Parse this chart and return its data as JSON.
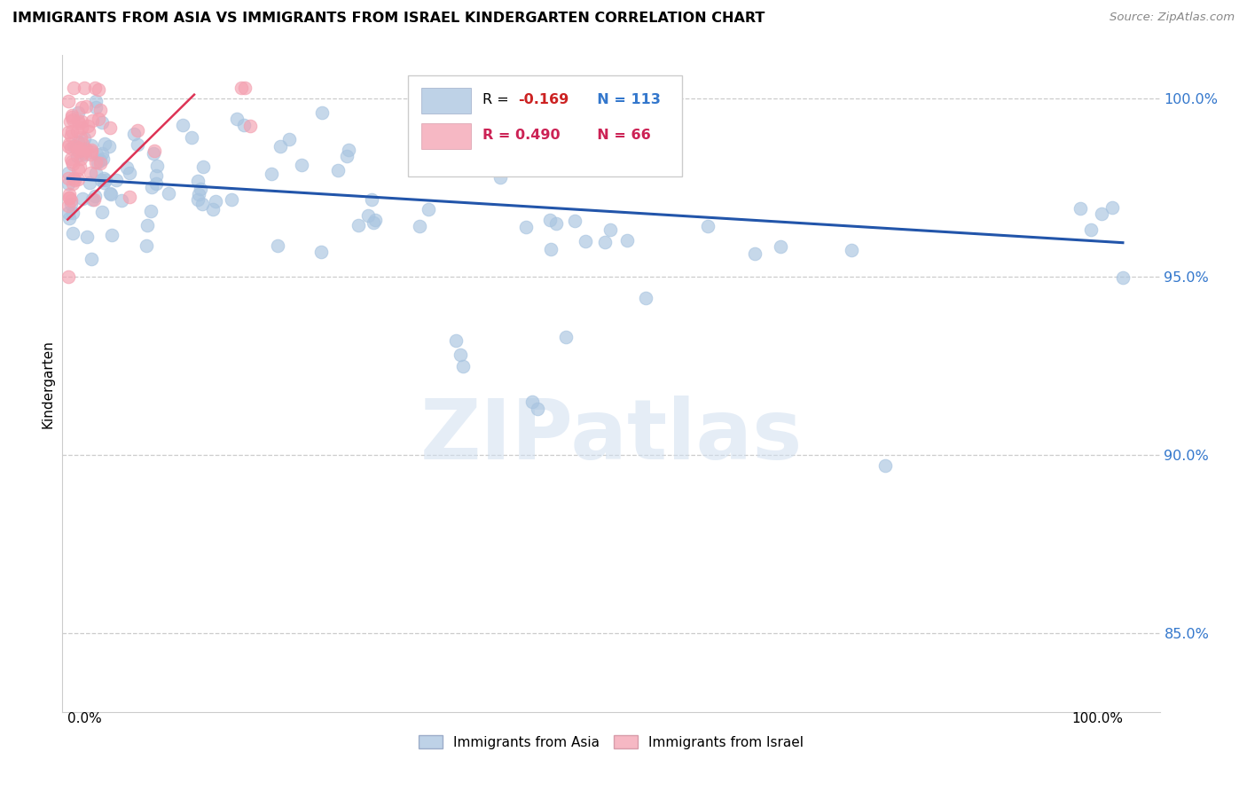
{
  "title": "IMMIGRANTS FROM ASIA VS IMMIGRANTS FROM ISRAEL KINDERGARTEN CORRELATION CHART",
  "source": "Source: ZipAtlas.com",
  "ylabel": "Kindergarten",
  "legend_blue_r": "R = ",
  "legend_blue_r_val": "-0.169",
  "legend_blue_n": "N = 113",
  "legend_pink_r": "R = 0.490",
  "legend_pink_n": "N = 66",
  "legend_blue_label": "Immigrants from Asia",
  "legend_pink_label": "Immigrants from Israel",
  "blue_color": "#A8C4E0",
  "pink_color": "#F4A0B0",
  "trend_blue_color": "#2255AA",
  "trend_pink_color": "#DD3355",
  "watermark": "ZIPatlas",
  "ylim_min": 0.828,
  "ylim_max": 1.012,
  "y_ticks": [
    0.85,
    0.9,
    0.95,
    1.0
  ],
  "y_tick_labels": [
    "85.0%",
    "90.0%",
    "95.0%",
    "100.0%"
  ]
}
